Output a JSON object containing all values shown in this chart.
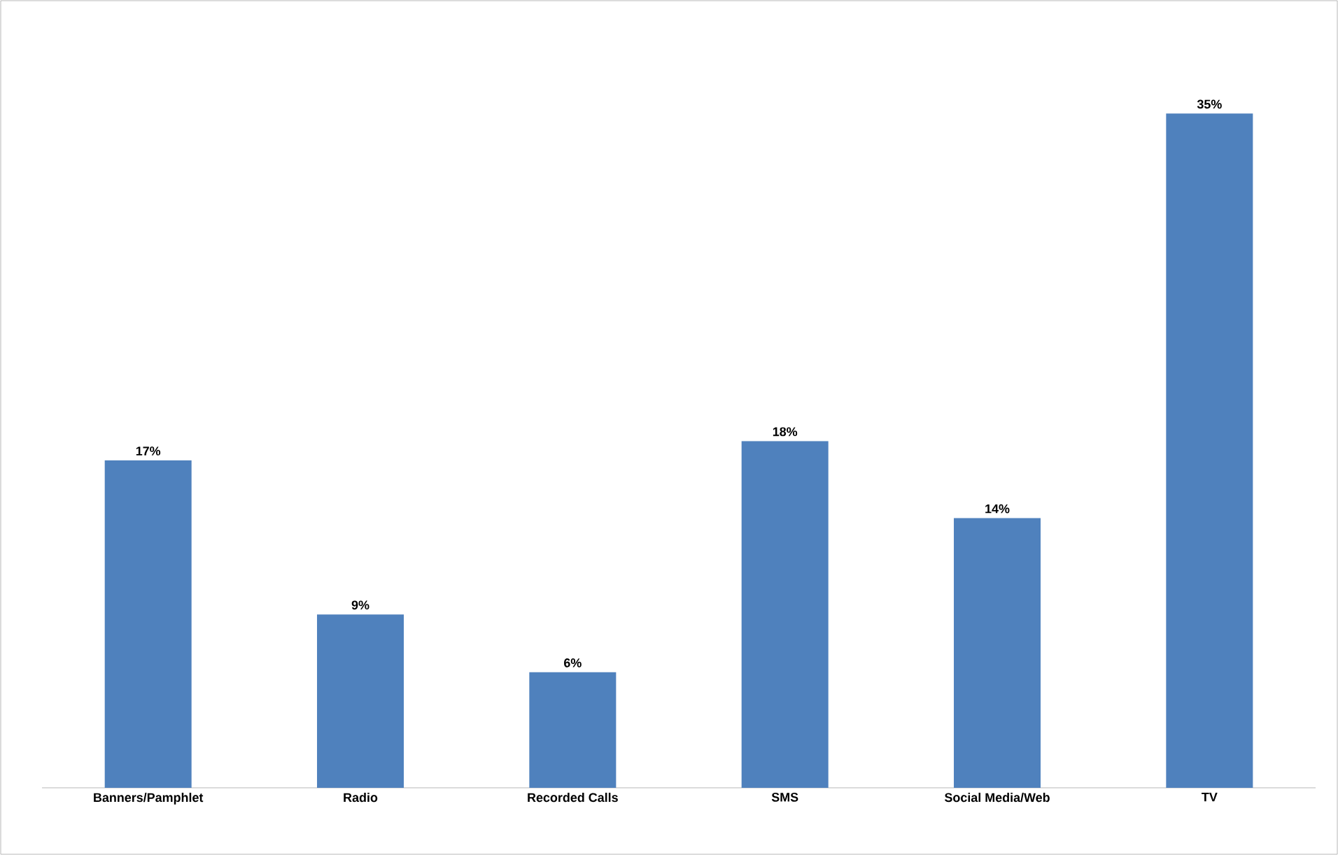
{
  "chart_data": {
    "type": "bar",
    "categories": [
      "Banners/Pamphlet",
      "Radio",
      "Recorded Calls",
      "SMS",
      "Social Media/Web",
      "TV"
    ],
    "values": [
      17,
      9,
      6,
      18,
      14,
      35
    ],
    "value_labels": [
      "17%",
      "9%",
      "6%",
      "18%",
      "14%",
      "35%"
    ],
    "color": "#4f81bd"
  }
}
